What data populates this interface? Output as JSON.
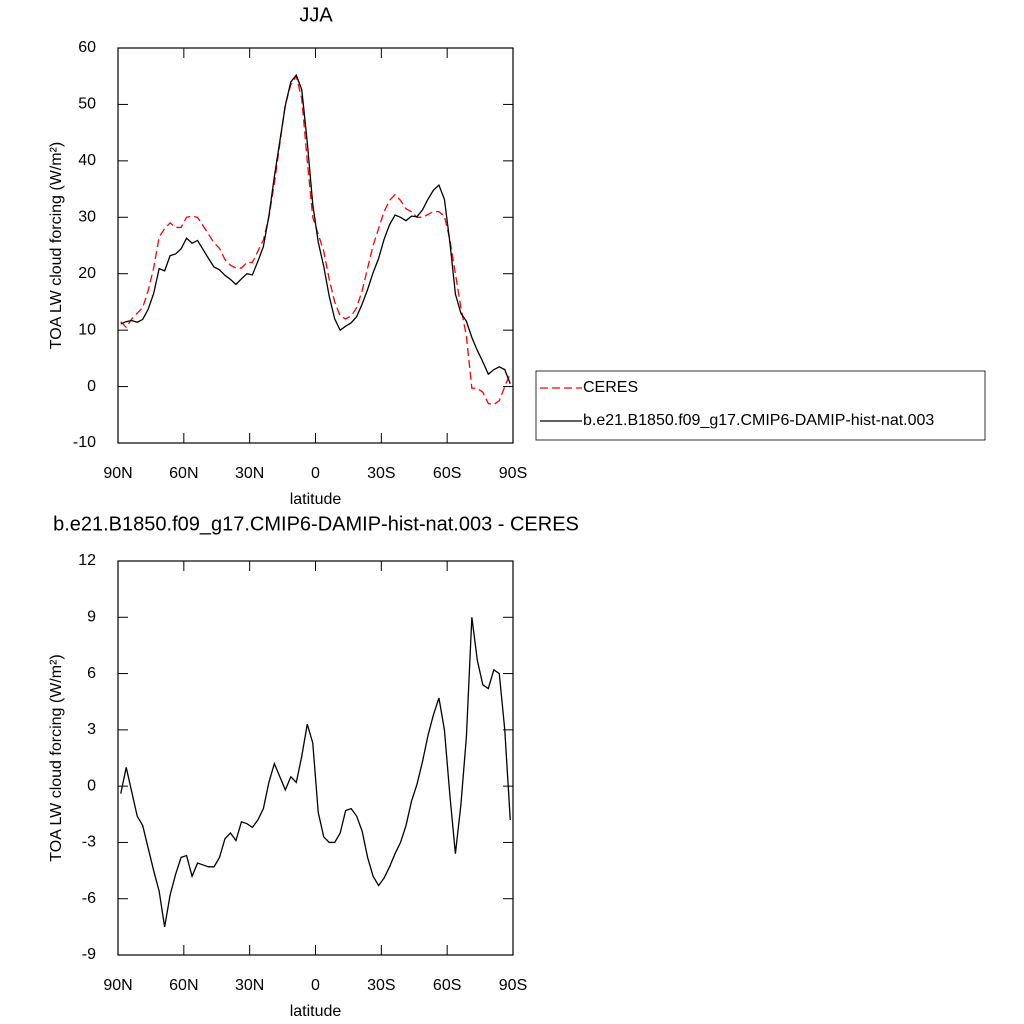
{
  "chart_data": [
    {
      "type": "line",
      "title": "JJA",
      "xlabel": "latitude",
      "ylabel": "TOA LW cloud forcing (W/m²)",
      "x": [
        88.75,
        86.25,
        83.75,
        81.25,
        78.75,
        76.25,
        73.75,
        71.25,
        68.75,
        66.25,
        63.75,
        61.25,
        58.75,
        56.25,
        53.75,
        51.25,
        48.75,
        46.25,
        43.75,
        41.25,
        38.75,
        36.25,
        33.75,
        31.25,
        28.75,
        26.25,
        23.75,
        21.25,
        18.75,
        16.25,
        13.75,
        11.25,
        8.75,
        6.25,
        3.75,
        1.25,
        -1.25,
        -3.75,
        -6.25,
        -8.75,
        -11.25,
        -13.75,
        -16.25,
        -18.75,
        -21.25,
        -23.75,
        -26.25,
        -28.75,
        -31.25,
        -33.75,
        -36.25,
        -38.75,
        -41.25,
        -43.75,
        -46.25,
        -48.75,
        -51.25,
        -53.75,
        -56.25,
        -58.75,
        -61.25,
        -63.75,
        -66.25,
        -68.75,
        -71.25,
        -73.75,
        -76.25,
        -78.75,
        -81.25,
        -83.75,
        -86.25,
        -88.75
      ],
      "series": [
        {
          "name": "CERES",
          "color": "#ff0000",
          "dashed": true,
          "values": [
            11.5,
            10.5,
            12,
            13,
            14,
            17,
            21,
            26.5,
            28,
            29,
            28.2,
            28.2,
            30,
            30.2,
            30,
            28.5,
            27,
            25.5,
            24.5,
            22.5,
            21.5,
            21,
            21,
            22,
            22,
            24,
            26,
            30,
            36,
            43,
            50,
            53.5,
            55,
            51,
            40,
            30,
            27,
            24,
            19,
            15,
            12.5,
            12,
            12.5,
            14,
            17,
            21,
            25,
            28,
            31,
            33,
            34,
            33,
            31.5,
            31,
            30,
            30,
            30.5,
            31,
            31,
            30.2,
            26,
            20,
            14,
            9,
            -0.3,
            -0.3,
            -1,
            -3,
            -3.2,
            -2.5,
            0,
            2.3
          ]
        },
        {
          "name": "b.e21.B1850.f09_g17.CMIP6-DAMIP-hist-nat.003",
          "color": "#000000",
          "dashed": false,
          "values": [
            11.1,
            11.5,
            11.7,
            11.4,
            11.9,
            13.7,
            16.5,
            20.9,
            20.5,
            23.2,
            23.5,
            24.4,
            26.3,
            25.4,
            25.9,
            24.3,
            22.7,
            21.2,
            20.7,
            19.7,
            19.0,
            18.1,
            19.1,
            20.0,
            19.8,
            22.2,
            24.8,
            30.2,
            37.2,
            43.5,
            49.8,
            54.0,
            55.2,
            52.6,
            43.3,
            32.3,
            25.6,
            21.3,
            16.0,
            12.0,
            10.0,
            10.7,
            11.3,
            12.4,
            14.6,
            17.2,
            20.2,
            22.7,
            26.1,
            28.7,
            30.4,
            30.0,
            29.4,
            30.2,
            30.1,
            31.3,
            33.2,
            34.8,
            35.7,
            33.2,
            25.5,
            16.4,
            13.0,
            11.6,
            8.7,
            6.4,
            4.4,
            2.2,
            3.0,
            3.5,
            3.0,
            0.5
          ]
        }
      ],
      "xlim": [
        90,
        -90
      ],
      "xticks": [
        {
          "value": 90,
          "label": "90N"
        },
        {
          "value": 60,
          "label": "60N"
        },
        {
          "value": 30,
          "label": "30N"
        },
        0,
        {
          "value": -30,
          "label": "30S"
        },
        {
          "value": -60,
          "label": "60S"
        },
        {
          "value": -90,
          "label": "90S"
        }
      ],
      "ylim": [
        -10,
        60
      ],
      "yticks": [
        -10,
        0,
        10,
        20,
        30,
        40,
        50,
        60
      ],
      "legend": "right"
    },
    {
      "type": "line",
      "title": "b.e21.B1850.f09_g17.CMIP6-DAMIP-hist-nat.003 - CERES",
      "xlabel": "latitude",
      "ylabel": "TOA LW cloud forcing (W/m²)",
      "x": [
        88.75,
        86.25,
        83.75,
        81.25,
        78.75,
        76.25,
        73.75,
        71.25,
        68.75,
        66.25,
        63.75,
        61.25,
        58.75,
        56.25,
        53.75,
        51.25,
        48.75,
        46.25,
        43.75,
        41.25,
        38.75,
        36.25,
        33.75,
        31.25,
        28.75,
        26.25,
        23.75,
        21.25,
        18.75,
        16.25,
        13.75,
        11.25,
        8.75,
        6.25,
        3.75,
        1.25,
        -1.25,
        -3.75,
        -6.25,
        -8.75,
        -11.25,
        -13.75,
        -16.25,
        -18.75,
        -21.25,
        -23.75,
        -26.25,
        -28.75,
        -31.25,
        -33.75,
        -36.25,
        -38.75,
        -41.25,
        -43.75,
        -46.25,
        -48.75,
        -51.25,
        -53.75,
        -56.25,
        -58.75,
        -61.25,
        -63.75,
        -66.25,
        -68.75,
        -71.25,
        -73.75,
        -76.25,
        -78.75,
        -81.25,
        -83.75,
        -86.25,
        -88.75
      ],
      "color": "#000000",
      "values": [
        -0.4,
        1.0,
        -0.3,
        -1.6,
        -2.1,
        -3.3,
        -4.5,
        -5.6,
        -7.5,
        -5.8,
        -4.7,
        -3.8,
        -3.7,
        -4.8,
        -4.1,
        -4.2,
        -4.3,
        -4.3,
        -3.8,
        -2.8,
        -2.5,
        -2.9,
        -1.9,
        -2.0,
        -2.2,
        -1.8,
        -1.2,
        0.2,
        1.2,
        0.5,
        -0.2,
        0.5,
        0.2,
        1.6,
        3.3,
        2.3,
        -1.4,
        -2.7,
        -3.0,
        -3.0,
        -2.5,
        -1.3,
        -1.2,
        -1.6,
        -2.4,
        -3.8,
        -4.8,
        -5.3,
        -4.9,
        -4.3,
        -3.6,
        -3.0,
        -2.1,
        -0.8,
        0.1,
        1.3,
        2.7,
        3.8,
        4.7,
        3.0,
        -0.5,
        -3.6,
        -1.0,
        2.6,
        9.0,
        6.7,
        5.4,
        5.2,
        6.2,
        6.0,
        3.0,
        -1.8
      ],
      "xlim": [
        90,
        -90
      ],
      "xticks": [
        {
          "value": 90,
          "label": "90N"
        },
        {
          "value": 60,
          "label": "60N"
        },
        {
          "value": 30,
          "label": "30N"
        },
        0,
        {
          "value": -30,
          "label": "30S"
        },
        {
          "value": -60,
          "label": "60S"
        },
        {
          "value": -90,
          "label": "90S"
        }
      ],
      "ylim": [
        -9,
        12
      ],
      "yticks": [
        -9,
        -6,
        -3,
        0,
        3,
        6,
        9,
        12
      ]
    }
  ]
}
